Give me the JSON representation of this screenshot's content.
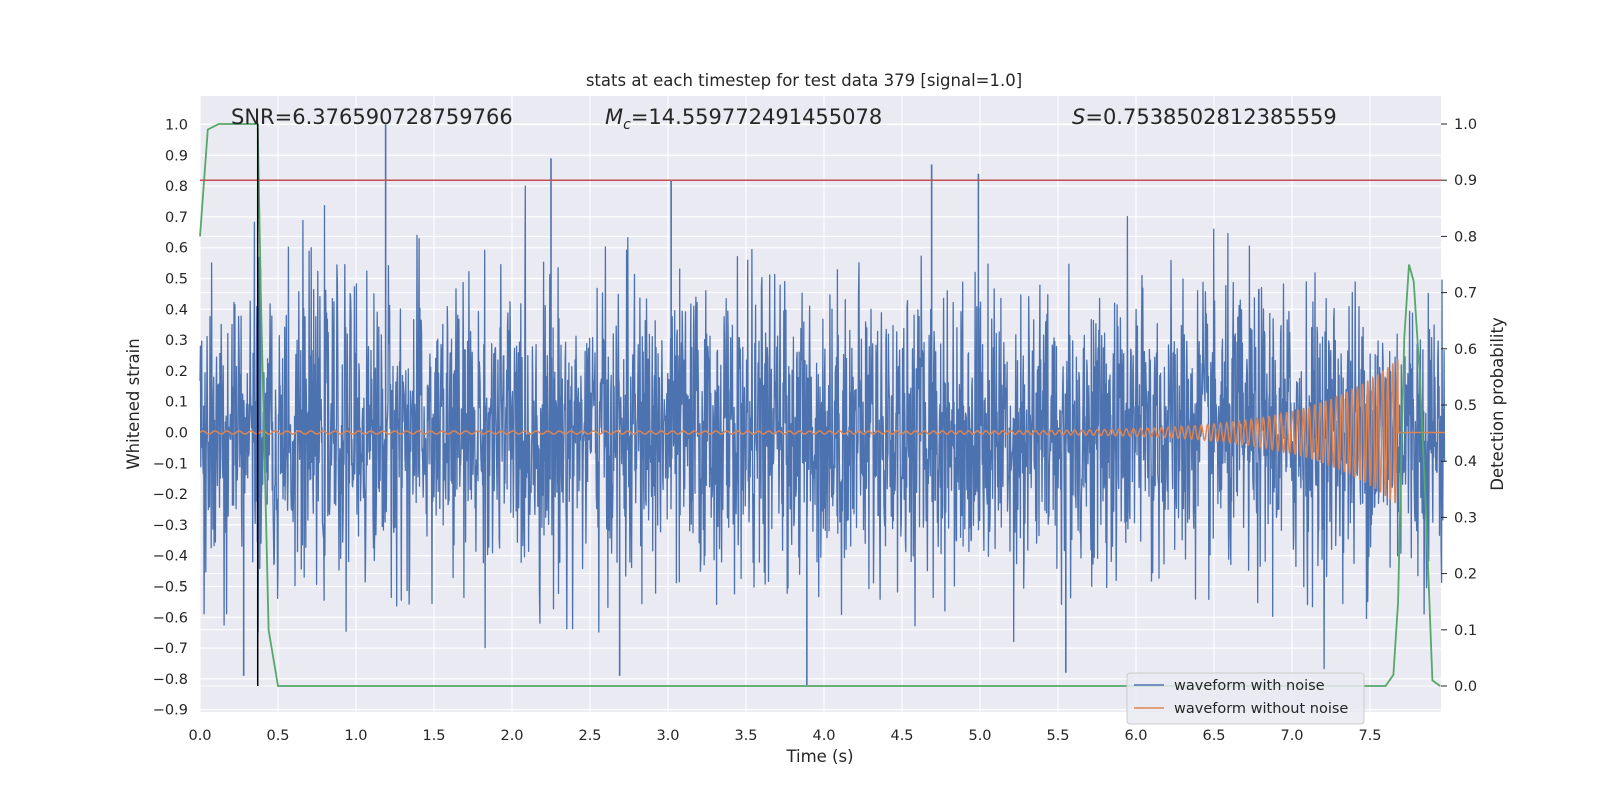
{
  "chart_data": {
    "type": "line",
    "title": "stats at each timestep for test data 379 [signal=1.0]",
    "xlabel": "Time (s)",
    "ylabel": "Whitened strain",
    "y2label": "Detection probability",
    "xlim": [
      0.0,
      8.0
    ],
    "ylim": [
      -0.92,
      1.09
    ],
    "y2lim": [
      -0.045,
      1.045
    ],
    "x_ticks": [
      "0.0",
      "0.5",
      "1.0",
      "1.5",
      "2.0",
      "2.5",
      "3.0",
      "3.5",
      "4.0",
      "4.5",
      "5.0",
      "5.5",
      "6.0",
      "6.5",
      "7.0",
      "7.5"
    ],
    "y_ticks": [
      "1.0",
      "0.9",
      "0.8",
      "0.7",
      "0.6",
      "0.5",
      "0.4",
      "0.3",
      "0.2",
      "0.1",
      "0.0",
      "−0.1",
      "−0.2",
      "−0.3",
      "−0.4",
      "−0.5",
      "−0.6",
      "−0.7",
      "−0.8",
      "−0.9"
    ],
    "y2_ticks": [
      "1.0",
      "0.9",
      "0.8",
      "0.7",
      "0.6",
      "0.5",
      "0.4",
      "0.3",
      "0.2",
      "0.1",
      "0.0"
    ],
    "grid": true,
    "legend_position": "lower-right",
    "annotations": {
      "snr": "SNR=6.376590728759766",
      "mc_symbol": "M",
      "mc_subscript": "c",
      "mc_value": "=14.559772491455078",
      "s_symbol": "S",
      "s_value": "=0.7538502812385559"
    },
    "threshold_line": {
      "axis": "y2",
      "value": 0.9,
      "color": "#c44e52"
    },
    "vertical_marker": {
      "x": 0.37,
      "color": "#000000"
    },
    "series": [
      {
        "name": "waveform with noise",
        "color": "#4c72b0",
        "axis": "y",
        "description_stats": {
          "typical_amplitude": 0.42,
          "max": 1.0,
          "min": -0.82
        },
        "peaks": [
          {
            "x": 1.19,
            "y": 1.0
          },
          {
            "x": 2.25,
            "y": 0.89
          },
          {
            "x": 3.02,
            "y": 0.82
          },
          {
            "x": 4.69,
            "y": 0.87
          },
          {
            "x": 4.99,
            "y": 0.84
          },
          {
            "x": 3.89,
            "y": -0.82
          },
          {
            "x": 5.55,
            "y": -0.78
          },
          {
            "x": 2.69,
            "y": -0.79
          },
          {
            "x": 0.28,
            "y": -0.79
          }
        ]
      },
      {
        "name": "waveform without noise",
        "color": "#dd8452",
        "axis": "y",
        "chirp": {
          "start_amp": 0.005,
          "peak_amp": 0.24,
          "merger_time": 7.68,
          "start_cycles_per_s": 13,
          "end_cycles_per_s": 32
        }
      },
      {
        "name": "Detection probability",
        "color": "#55a868",
        "axis": "y2",
        "x": [
          0.0,
          0.05,
          0.12,
          0.2,
          0.28,
          0.37,
          0.39,
          0.44,
          0.5,
          1.0,
          2.0,
          3.0,
          4.0,
          5.0,
          6.0,
          7.0,
          7.6,
          7.65,
          7.68,
          7.7,
          7.72,
          7.75,
          7.78,
          7.82,
          7.86,
          7.9,
          7.95
        ],
        "values": [
          0.8,
          0.99,
          1.0,
          1.0,
          1.0,
          1.0,
          0.7,
          0.1,
          0.0,
          0.0,
          0.0,
          0.0,
          0.0,
          0.0,
          0.0,
          0.0,
          0.0,
          0.02,
          0.15,
          0.4,
          0.62,
          0.75,
          0.72,
          0.55,
          0.3,
          0.01,
          0.0
        ]
      }
    ]
  }
}
